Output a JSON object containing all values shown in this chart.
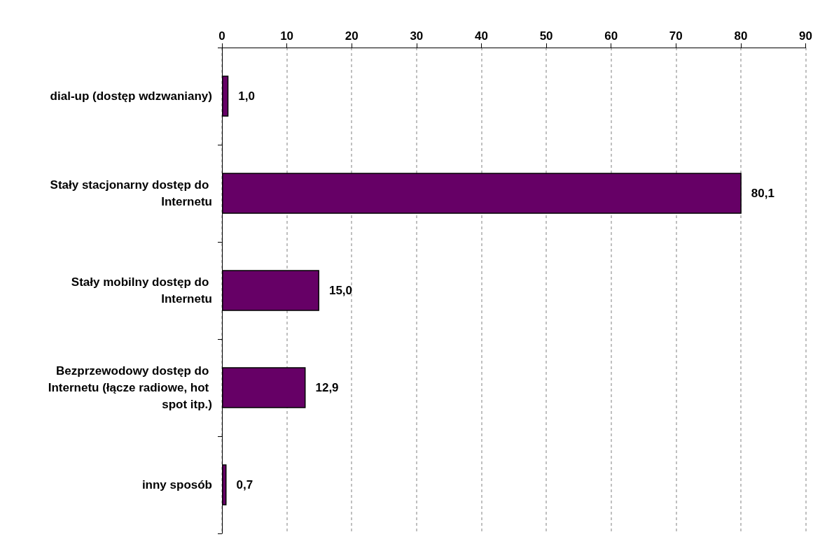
{
  "chart_data": {
    "type": "bar",
    "orientation": "horizontal",
    "categories": [
      "dial-up (dostęp wdzwaniany)",
      "Stały stacjonarny dostęp do Internetu",
      "Stały mobilny dostęp do Internetu",
      "Bezprzewodowy dostęp do Internetu (łącze radiowe, hot spot itp.)",
      "inny sposób"
    ],
    "values": [
      1.0,
      80.1,
      15.0,
      12.9,
      0.7
    ],
    "value_labels": [
      "1,0",
      "80,1",
      "15,0",
      "12,9",
      "0,7"
    ],
    "color": "#660066",
    "xlim": [
      0,
      90
    ],
    "xticks": [
      0,
      10,
      20,
      30,
      40,
      50,
      60,
      70,
      80,
      90
    ],
    "grid": "x"
  }
}
